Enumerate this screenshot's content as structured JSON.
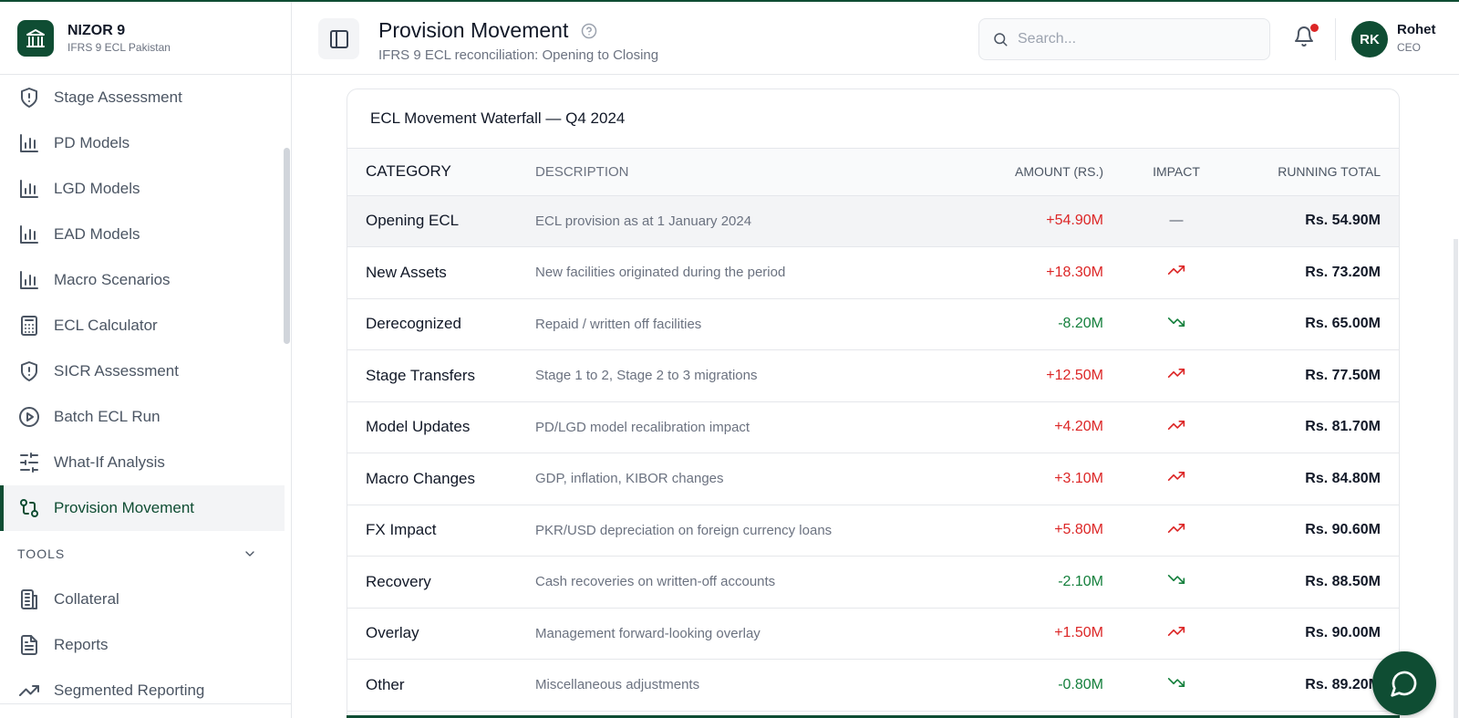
{
  "brand": {
    "name": "NIZOR 9",
    "subtitle": "IFRS 9 ECL Pakistan"
  },
  "sidebar": {
    "items": [
      {
        "label": "Stage Assessment",
        "icon": "shield-icon"
      },
      {
        "label": "PD Models",
        "icon": "bar-chart-icon"
      },
      {
        "label": "LGD Models",
        "icon": "bar-chart-icon"
      },
      {
        "label": "EAD Models",
        "icon": "bar-chart-icon"
      },
      {
        "label": "Macro Scenarios",
        "icon": "bar-chart-icon"
      },
      {
        "label": "ECL Calculator",
        "icon": "calculator-icon"
      },
      {
        "label": "SICR Assessment",
        "icon": "shield-icon"
      },
      {
        "label": "Batch ECL Run",
        "icon": "play-circle-icon"
      },
      {
        "label": "What-If Analysis",
        "icon": "sliders-icon"
      },
      {
        "label": "Provision Movement",
        "icon": "git-compare-icon",
        "active": true
      }
    ],
    "tools_section": "TOOLS",
    "tools_items": [
      {
        "label": "Collateral",
        "icon": "building-icon"
      },
      {
        "label": "Reports",
        "icon": "file-text-icon"
      },
      {
        "label": "Segmented Reporting",
        "icon": "trending-up-icon"
      }
    ]
  },
  "header": {
    "title": "Provision Movement",
    "subtitle": "IFRS 9 ECL reconciliation: Opening to Closing",
    "search_placeholder": "Search...",
    "user": {
      "initials": "RK",
      "name": "Rohet",
      "role": "CEO"
    }
  },
  "card": {
    "title": "ECL Movement Waterfall — Q4 2024",
    "columns": [
      "CATEGORY",
      "DESCRIPTION",
      "AMOUNT (RS.)",
      "IMPACT",
      "RUNNING TOTAL"
    ],
    "rows": [
      {
        "category": "Opening ECL",
        "description": "ECL provision as at 1 January 2024",
        "amount": "+54.90M",
        "impact": "—",
        "running": "Rs. 54.90M",
        "sign": "pos",
        "trend": "none"
      },
      {
        "category": "New Assets",
        "description": "New facilities originated during the period",
        "amount": "+18.30M",
        "impact": "",
        "running": "Rs. 73.20M",
        "sign": "pos",
        "trend": "up"
      },
      {
        "category": "Derecognized",
        "description": "Repaid / written off facilities",
        "amount": "-8.20M",
        "impact": "",
        "running": "Rs. 65.00M",
        "sign": "neg",
        "trend": "down"
      },
      {
        "category": "Stage Transfers",
        "description": "Stage 1 to 2, Stage 2 to 3 migrations",
        "amount": "+12.50M",
        "impact": "",
        "running": "Rs. 77.50M",
        "sign": "pos",
        "trend": "up"
      },
      {
        "category": "Model Updates",
        "description": "PD/LGD model recalibration impact",
        "amount": "+4.20M",
        "impact": "",
        "running": "Rs. 81.70M",
        "sign": "pos",
        "trend": "up"
      },
      {
        "category": "Macro Changes",
        "description": "GDP, inflation, KIBOR changes",
        "amount": "+3.10M",
        "impact": "",
        "running": "Rs. 84.80M",
        "sign": "pos",
        "trend": "up"
      },
      {
        "category": "FX Impact",
        "description": "PKR/USD depreciation on foreign currency loans",
        "amount": "+5.80M",
        "impact": "",
        "running": "Rs. 90.60M",
        "sign": "pos",
        "trend": "up"
      },
      {
        "category": "Recovery",
        "description": "Cash recoveries on written-off accounts",
        "amount": "-2.10M",
        "impact": "",
        "running": "Rs. 88.50M",
        "sign": "neg",
        "trend": "down"
      },
      {
        "category": "Overlay",
        "description": "Management forward-looking overlay",
        "amount": "+1.50M",
        "impact": "",
        "running": "Rs. 90.00M",
        "sign": "pos",
        "trend": "up"
      },
      {
        "category": "Other",
        "description": "Miscellaneous adjustments",
        "amount": "-0.80M",
        "impact": "",
        "running": "Rs. 89.20M",
        "sign": "neg",
        "trend": "down"
      }
    ]
  },
  "colors": {
    "brand": "#0f4d33",
    "positive": "#dc2626",
    "negative": "#15803d"
  }
}
